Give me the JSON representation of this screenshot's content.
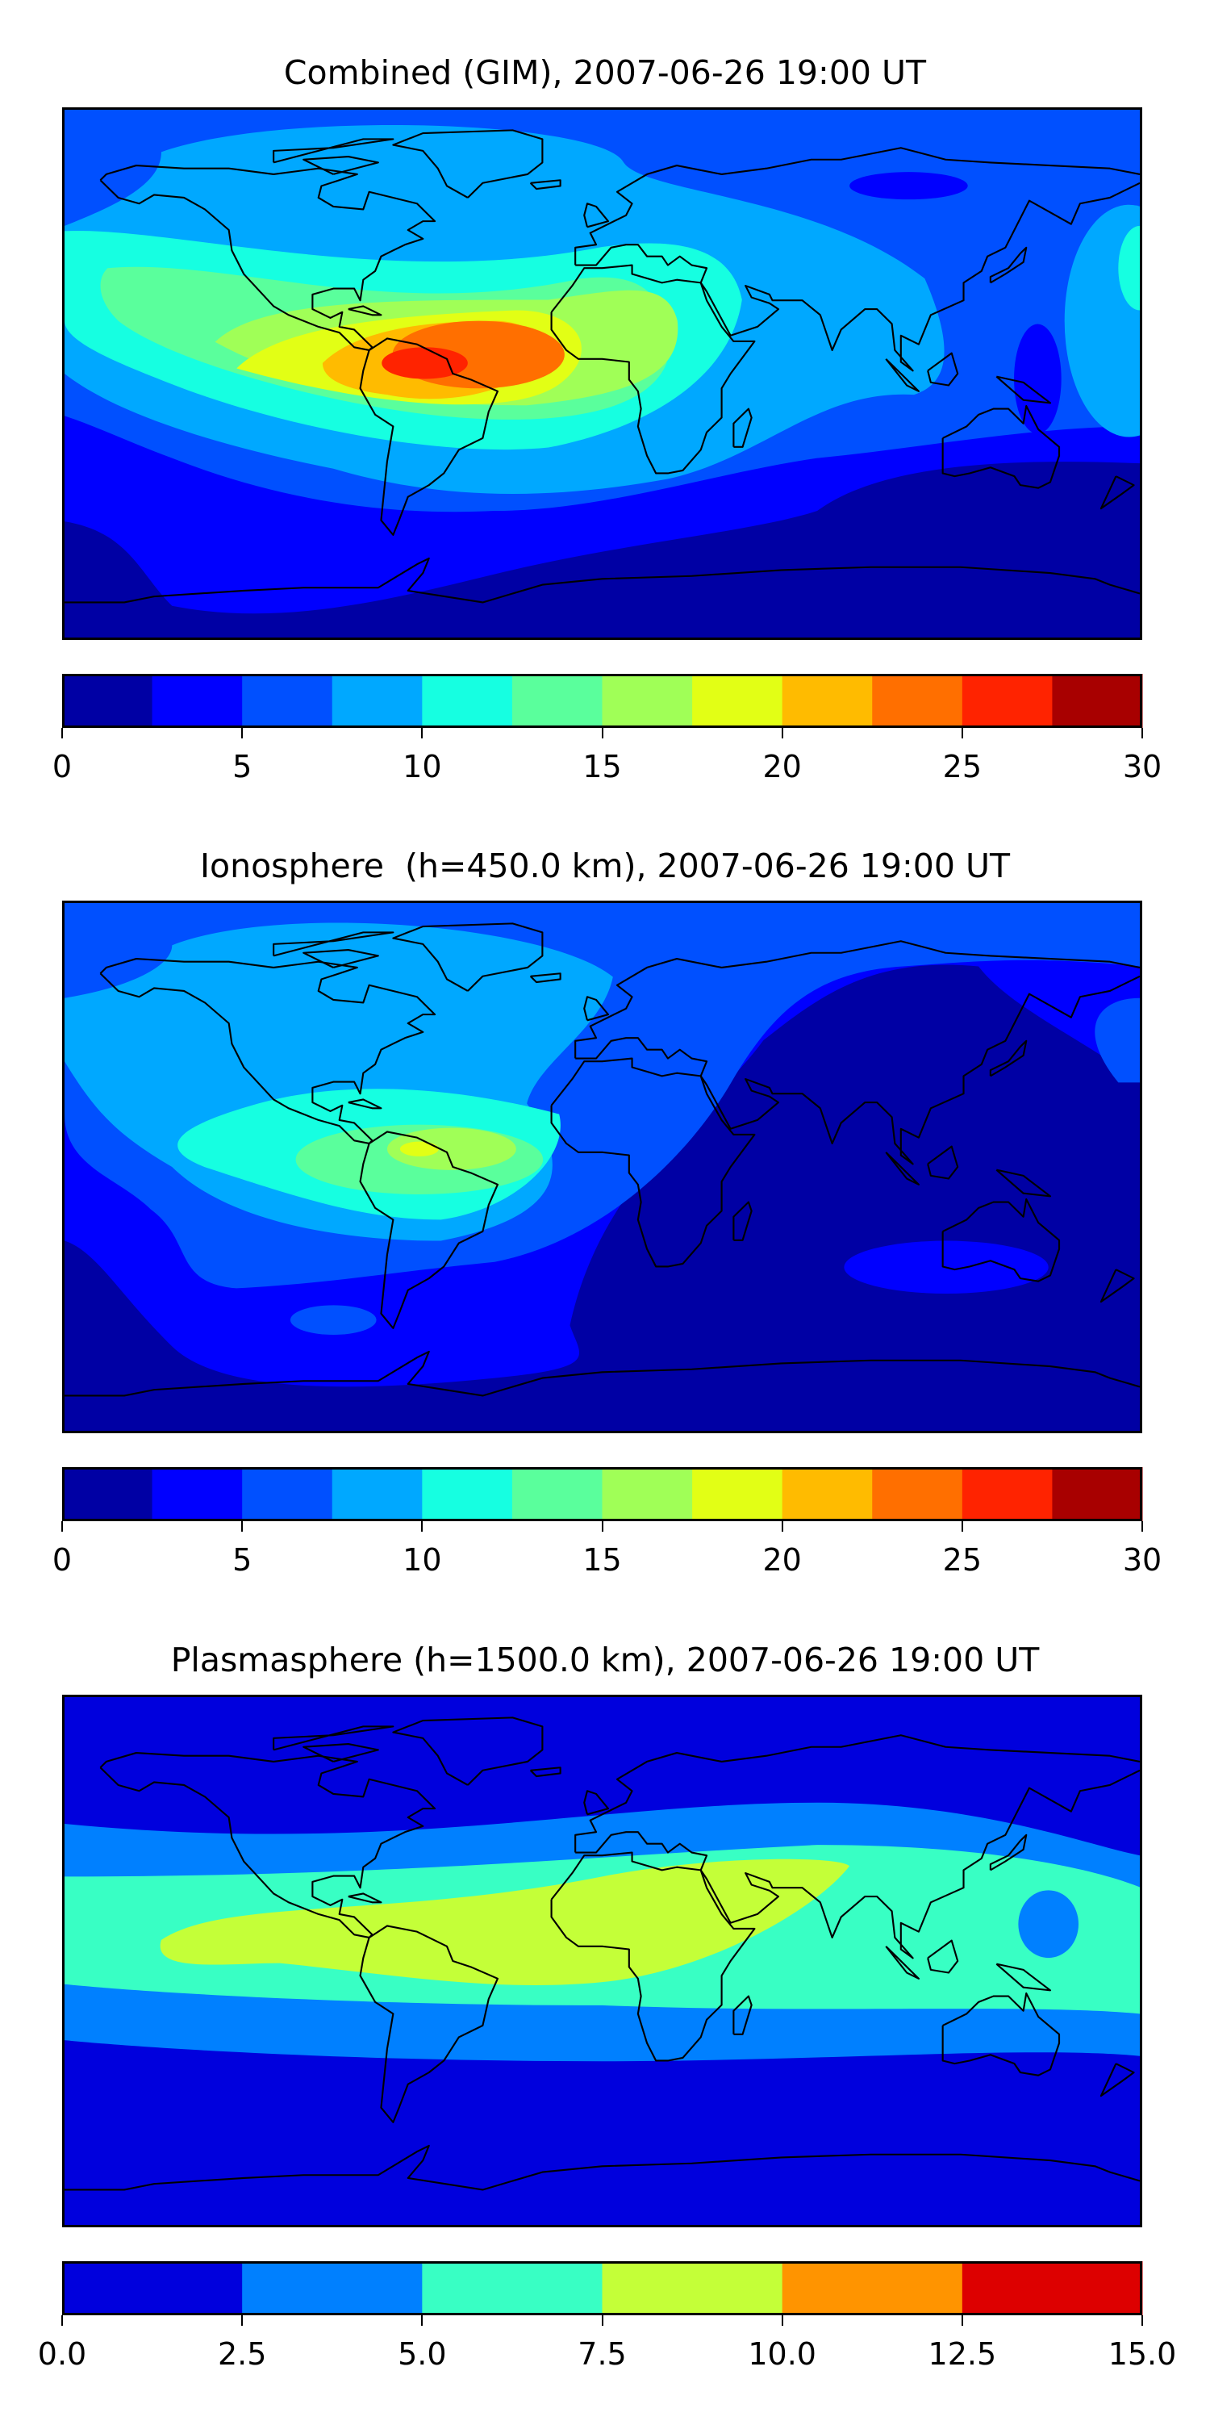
{
  "chart_data": [
    {
      "type": "heatmap",
      "subtype": "filled-contour world map",
      "title": "Combined (GIM), 2007-06-26 19:00 UT",
      "levels": [
        0,
        2.5,
        5,
        7.5,
        10,
        12.5,
        15,
        17.5,
        20,
        22.5,
        25,
        27.5,
        30
      ],
      "colors": [
        "#0000a4",
        "#0000ff",
        "#0050ff",
        "#00a8ff",
        "#16ffe1",
        "#5aff9c",
        "#a0ff57",
        "#e2ff15",
        "#ffbb00",
        "#ff6f00",
        "#ff2300",
        "#a80000"
      ],
      "ticks": [
        "0",
        "5",
        "10",
        "15",
        "20",
        "25",
        "30"
      ],
      "tick_values": [
        0,
        5,
        10,
        15,
        20,
        25,
        30
      ],
      "range": [
        0,
        30
      ],
      "peak": "25-27.5 over northern South America"
    },
    {
      "type": "heatmap",
      "subtype": "filled-contour world map",
      "title": "Ionosphere  (h=450.0 km), 2007-06-26 19:00 UT",
      "levels": [
        0,
        2.5,
        5,
        7.5,
        10,
        12.5,
        15,
        17.5,
        20,
        22.5,
        25,
        27.5,
        30
      ],
      "colors": [
        "#0000a4",
        "#0000ff",
        "#0050ff",
        "#00a8ff",
        "#16ffe1",
        "#5aff9c",
        "#a0ff57",
        "#e2ff15",
        "#ffbb00",
        "#ff6f00",
        "#ff2300",
        "#a80000"
      ],
      "ticks": [
        "0",
        "5",
        "10",
        "15",
        "20",
        "25",
        "30"
      ],
      "tick_values": [
        0,
        5,
        10,
        15,
        20,
        25,
        30
      ],
      "range": [
        0,
        30
      ],
      "peak": "17.5-20 over northern South America"
    },
    {
      "type": "heatmap",
      "subtype": "filled-contour world map",
      "title": "Plasmasphere (h=1500.0 km), 2007-06-26 19:00 UT",
      "levels": [
        0,
        2.5,
        5,
        7.5,
        10,
        12.5,
        15
      ],
      "colors": [
        "#0000dd",
        "#0080ff",
        "#38ffc4",
        "#c4ff38",
        "#ff9400",
        "#dd0000"
      ],
      "ticks": [
        "0.0",
        "2.5",
        "5.0",
        "7.5",
        "10.0",
        "12.5",
        "15.0"
      ],
      "tick_values": [
        0,
        2.5,
        5,
        7.5,
        10,
        12.5,
        15
      ],
      "range": [
        0,
        15
      ],
      "peak": "7.5-10 over South America and Africa"
    }
  ]
}
